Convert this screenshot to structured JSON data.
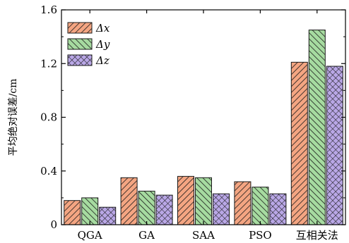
{
  "chart_data": {
    "type": "bar",
    "title": "",
    "xlabel": "",
    "ylabel": "平均绝对误差/cm",
    "categories": [
      "QGA",
      "GA",
      "SAA",
      "PSO",
      "互相关法"
    ],
    "ylim": [
      0,
      1.6
    ],
    "yticks": [
      0,
      0.4,
      0.8,
      1.2,
      1.6
    ],
    "ytick_labels": [
      "0",
      "0.4",
      "0.8",
      "1.2",
      "1.6"
    ],
    "grid": false,
    "legend_position": "top-left",
    "series": [
      {
        "name": "Δx",
        "values": [
          0.18,
          0.35,
          0.36,
          0.32,
          1.21
        ],
        "color": "#f4a582",
        "pattern": "orange-hatch"
      },
      {
        "name": "Δy",
        "values": [
          0.2,
          0.25,
          0.35,
          0.28,
          1.45
        ],
        "color": "#a6dba0",
        "pattern": "green-hatch"
      },
      {
        "name": "Δz",
        "values": [
          0.13,
          0.22,
          0.23,
          0.23,
          1.18
        ],
        "color": "#b9a7e6",
        "pattern": "purple-crosshatch"
      }
    ]
  }
}
